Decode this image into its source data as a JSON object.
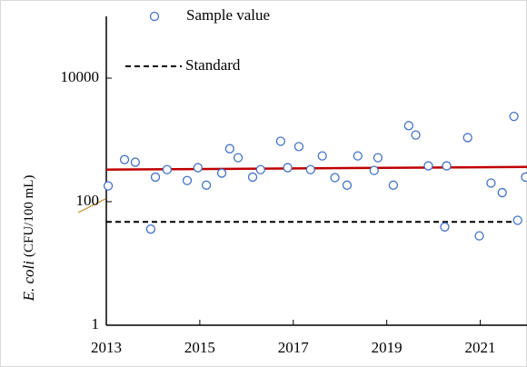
{
  "chart_data": {
    "type": "scatter",
    "y_label_italic": "E. coli",
    "y_label_units": "(CFU/100 mL)",
    "log_y": true,
    "xlim": [
      2013,
      2022
    ],
    "xticks": [
      2013,
      2015,
      2017,
      2019,
      2021
    ],
    "ylim": [
      1,
      100000
    ],
    "yticks": [
      1,
      100,
      10000
    ],
    "series": [
      {
        "name": "Sample value",
        "color": "#4472c4",
        "x": [
          2013.04,
          2013.39,
          2013.62,
          2013.95,
          2014.05,
          2014.3,
          2014.73,
          2014.96,
          2015.14,
          2015.47,
          2015.64,
          2015.82,
          2016.13,
          2016.3,
          2016.73,
          2016.88,
          2017.12,
          2017.37,
          2017.62,
          2017.89,
          2018.15,
          2018.38,
          2018.73,
          2018.81,
          2019.14,
          2019.47,
          2019.62,
          2019.89,
          2020.24,
          2020.28,
          2020.73,
          2020.98,
          2021.23,
          2021.47,
          2021.72,
          2021.8,
          2021.97
        ],
        "values": [
          180,
          480,
          435,
          36,
          250,
          330,
          220,
          355,
          185,
          290,
          720,
          515,
          250,
          330,
          950,
          355,
          780,
          330,
          550,
          245,
          185,
          550,
          320,
          515,
          185,
          1700,
          1200,
          380,
          39,
          380,
          1090,
          28,
          200,
          140,
          2400,
          50,
          250
        ]
      }
    ],
    "standard": {
      "name": "Standard",
      "value": 47,
      "color": "#000000"
    },
    "trend": {
      "x": [
        2013,
        2022
      ],
      "values": [
        330,
        365
      ],
      "color": "#c00000"
    }
  }
}
